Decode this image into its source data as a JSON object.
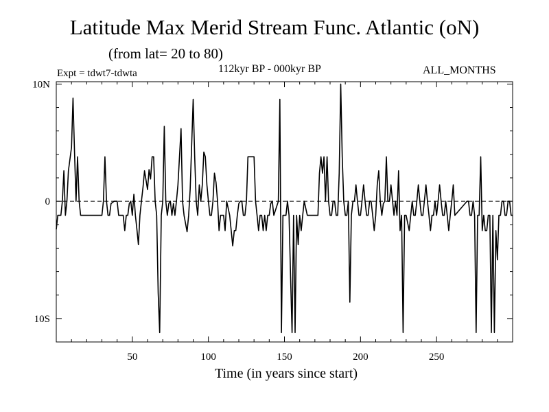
{
  "chart_data": {
    "type": "line",
    "title": "Latitude Max Merid Stream Func. Atlantic (oN)",
    "subtitle": "(from lat= 20 to 80)",
    "header_left": "Expt = tdwt7-tdwta",
    "header_center": "112kyr BP - 000kyr BP",
    "header_right": "ALL_MONTHS",
    "xlabel": "Time (in years since start)",
    "ylabel": "",
    "xlim": [
      0,
      300
    ],
    "ylim": [
      -12,
      10.2
    ],
    "x_ticks": [
      50,
      100,
      150,
      200,
      250
    ],
    "y_ticks": [
      {
        "value": 10,
        "label": "10N"
      },
      {
        "value": 0,
        "label": "0"
      },
      {
        "value": -10,
        "label": "10S"
      }
    ],
    "zero_line": "dashed",
    "series": [
      {
        "points": [
          [
            0,
            -2.4
          ],
          [
            1,
            -1.2
          ],
          [
            3,
            -1.2
          ],
          [
            4,
            0
          ],
          [
            5,
            2.6
          ],
          [
            6,
            -1.2
          ],
          [
            7,
            0
          ],
          [
            8,
            2.6
          ],
          [
            10,
            4.6
          ],
          [
            11,
            8.8
          ],
          [
            12,
            4.2
          ],
          [
            13,
            0
          ],
          [
            14,
            3.8
          ],
          [
            15,
            0
          ],
          [
            16,
            -1.2
          ],
          [
            18,
            -1.2
          ],
          [
            25,
            -1.2
          ],
          [
            30,
            -1.2
          ],
          [
            31,
            0
          ],
          [
            32,
            3.8
          ],
          [
            33,
            0
          ],
          [
            34,
            -1.2
          ],
          [
            35,
            -1.2
          ],
          [
            36,
            -0.2
          ],
          [
            38,
            0
          ],
          [
            40,
            0
          ],
          [
            41,
            -1.2
          ],
          [
            44,
            -1.2
          ],
          [
            45,
            -2.5
          ],
          [
            46,
            -1.2
          ],
          [
            47,
            -1.2
          ],
          [
            48,
            -0.2
          ],
          [
            49,
            0
          ],
          [
            50,
            -1.2
          ],
          [
            51,
            0.6
          ],
          [
            52,
            -1.2
          ],
          [
            53,
            -2.4
          ],
          [
            54,
            -3.7
          ],
          [
            55,
            -1.2
          ],
          [
            56,
            0
          ],
          [
            57,
            1.2
          ],
          [
            58,
            2.6
          ],
          [
            60,
            1.0
          ],
          [
            61,
            2.7
          ],
          [
            62,
            1.9
          ],
          [
            63,
            3.8
          ],
          [
            64,
            3.8
          ],
          [
            65,
            0
          ],
          [
            66,
            -1.2
          ],
          [
            67,
            -7.8
          ],
          [
            68,
            -11.2
          ],
          [
            69,
            -1.2
          ],
          [
            70,
            0
          ],
          [
            71,
            6.4
          ],
          [
            72,
            0
          ],
          [
            73,
            -1.2
          ],
          [
            74,
            -0.2
          ],
          [
            75,
            0
          ],
          [
            76,
            -1.2
          ],
          [
            77,
            -0.2
          ],
          [
            78,
            -1.2
          ],
          [
            79,
            0
          ],
          [
            80,
            1.4
          ],
          [
            82,
            6.2
          ],
          [
            83,
            0
          ],
          [
            84,
            -1.2
          ],
          [
            86,
            -2.6
          ],
          [
            87,
            -1.2
          ],
          [
            88,
            1.0
          ],
          [
            89,
            4.8
          ],
          [
            90,
            8.7
          ],
          [
            91,
            3.8
          ],
          [
            92,
            0
          ],
          [
            93,
            -1.2
          ],
          [
            94,
            1.4
          ],
          [
            95,
            0
          ],
          [
            96,
            1.4
          ],
          [
            97,
            4.2
          ],
          [
            98,
            3.8
          ],
          [
            99,
            1.4
          ],
          [
            100,
            0
          ],
          [
            101,
            -1.2
          ],
          [
            102,
            -1.2
          ],
          [
            103,
            0
          ],
          [
            104,
            2.4
          ],
          [
            105,
            1.6
          ],
          [
            106,
            0
          ],
          [
            107,
            -2.5
          ],
          [
            108,
            -1.2
          ],
          [
            110,
            -1.2
          ],
          [
            111,
            -2.5
          ],
          [
            112,
            0
          ],
          [
            114,
            -1.2
          ],
          [
            116,
            -3.8
          ],
          [
            117,
            -2.5
          ],
          [
            118,
            -2.5
          ],
          [
            119,
            -1.2
          ],
          [
            120,
            -0.2
          ],
          [
            121,
            0
          ],
          [
            122,
            0
          ],
          [
            123,
            -1.2
          ],
          [
            124,
            -1.2
          ],
          [
            125,
            0
          ],
          [
            126,
            3.8
          ],
          [
            130,
            3.8
          ],
          [
            131,
            0
          ],
          [
            132,
            -1.2
          ],
          [
            133,
            -2.5
          ],
          [
            134,
            -1.2
          ],
          [
            135,
            -1.2
          ],
          [
            136,
            -2.5
          ],
          [
            137,
            -1.2
          ],
          [
            138,
            -2.5
          ],
          [
            139,
            -1.2
          ],
          [
            140,
            -1.2
          ],
          [
            141,
            -0.2
          ],
          [
            142,
            0
          ],
          [
            143,
            -1.2
          ],
          [
            146,
            0
          ],
          [
            147,
            8.7
          ],
          [
            148,
            -11.2
          ],
          [
            149,
            -1.2
          ],
          [
            150,
            -1.2
          ],
          [
            151,
            -1.2
          ],
          [
            152,
            0
          ],
          [
            153,
            -1.2
          ],
          [
            154,
            -6.4
          ],
          [
            155,
            -11.2
          ],
          [
            156,
            -1.2
          ],
          [
            157,
            -11.2
          ],
          [
            158,
            -1.2
          ],
          [
            159,
            -3.7
          ],
          [
            160,
            -1.2
          ],
          [
            161,
            -2.5
          ],
          [
            162,
            -1.2
          ],
          [
            163,
            0
          ],
          [
            165,
            -1.2
          ],
          [
            170,
            -1.2
          ],
          [
            172,
            -1.2
          ],
          [
            173,
            2.4
          ],
          [
            174,
            3.8
          ],
          [
            175,
            2.4
          ],
          [
            176,
            3.8
          ],
          [
            177,
            0
          ],
          [
            178,
            3.8
          ],
          [
            179,
            0
          ],
          [
            180,
            -1.2
          ],
          [
            181,
            -1.2
          ],
          [
            182,
            0
          ],
          [
            183,
            0
          ],
          [
            184,
            -1.2
          ],
          [
            185,
            -1.2
          ],
          [
            186,
            2.4
          ],
          [
            187,
            10.0
          ],
          [
            188,
            3.8
          ],
          [
            189,
            0
          ],
          [
            190,
            -1.2
          ],
          [
            191,
            -1.2
          ],
          [
            192,
            0
          ],
          [
            193,
            -8.6
          ],
          [
            194,
            -1.2
          ],
          [
            195,
            0
          ],
          [
            196,
            0
          ],
          [
            197,
            1.4
          ],
          [
            198,
            0
          ],
          [
            199,
            -1.2
          ],
          [
            200,
            -1.2
          ],
          [
            201,
            0
          ],
          [
            202,
            1.4
          ],
          [
            203,
            0
          ],
          [
            204,
            -1.2
          ],
          [
            205,
            -1.2
          ],
          [
            206,
            0
          ],
          [
            207,
            0
          ],
          [
            208,
            -1.2
          ],
          [
            209,
            -2.5
          ],
          [
            210,
            -1.2
          ],
          [
            211,
            1.4
          ],
          [
            212,
            2.6
          ],
          [
            213,
            0
          ],
          [
            214,
            -1.2
          ],
          [
            215,
            -0.2
          ],
          [
            216,
            0
          ],
          [
            217,
            3.8
          ],
          [
            218,
            0
          ],
          [
            219,
            0
          ],
          [
            220,
            1.4
          ],
          [
            222,
            -1.2
          ],
          [
            223,
            0
          ],
          [
            224,
            -1.2
          ],
          [
            225,
            2.6
          ],
          [
            226,
            -2.5
          ],
          [
            227,
            -1.2
          ],
          [
            228,
            -11.2
          ],
          [
            229,
            -1.2
          ],
          [
            230,
            -1.2
          ],
          [
            232,
            -2.5
          ],
          [
            233,
            -1.2
          ],
          [
            234,
            0
          ],
          [
            235,
            -1.2
          ],
          [
            236,
            -1.2
          ],
          [
            237,
            0
          ],
          [
            238,
            1.4
          ],
          [
            239,
            0
          ],
          [
            240,
            -1.2
          ],
          [
            241,
            -1.2
          ],
          [
            242,
            0
          ],
          [
            243,
            1.4
          ],
          [
            244,
            0
          ],
          [
            245,
            -1.2
          ],
          [
            246,
            -2.5
          ],
          [
            247,
            -1.2
          ],
          [
            248,
            -1.2
          ],
          [
            249,
            0
          ],
          [
            250,
            -1.2
          ],
          [
            251,
            0
          ],
          [
            252,
            1.4
          ],
          [
            253,
            0
          ],
          [
            254,
            -1.2
          ],
          [
            255,
            -1.2
          ],
          [
            256,
            0
          ],
          [
            257,
            -1.2
          ],
          [
            258,
            -2.5
          ],
          [
            259,
            -1.2
          ],
          [
            260,
            0
          ],
          [
            261,
            1.4
          ],
          [
            262,
            -1.2
          ],
          [
            270,
            0
          ],
          [
            271,
            0
          ],
          [
            272,
            -1.2
          ],
          [
            273,
            -1.2
          ],
          [
            274,
            0
          ],
          [
            275,
            -1.2
          ],
          [
            276,
            -11.2
          ],
          [
            277,
            -1.2
          ],
          [
            278,
            -1.2
          ],
          [
            279,
            3.8
          ],
          [
            280,
            -2.5
          ],
          [
            281,
            -1.2
          ],
          [
            282,
            -2.5
          ],
          [
            283,
            -2.5
          ],
          [
            284,
            -1.2
          ],
          [
            285,
            -1.2
          ],
          [
            286,
            -11.2
          ],
          [
            287,
            -1.2
          ],
          [
            288,
            -11.2
          ],
          [
            289,
            -2.5
          ],
          [
            290,
            -5.0
          ],
          [
            291,
            -1.2
          ],
          [
            292,
            -1.2
          ],
          [
            293,
            0
          ],
          [
            294,
            0
          ],
          [
            295,
            -1.2
          ],
          [
            296,
            -1.2
          ],
          [
            297,
            0
          ],
          [
            298,
            0
          ],
          [
            299,
            -1.2
          ],
          [
            300,
            -1.2
          ]
        ]
      }
    ]
  }
}
